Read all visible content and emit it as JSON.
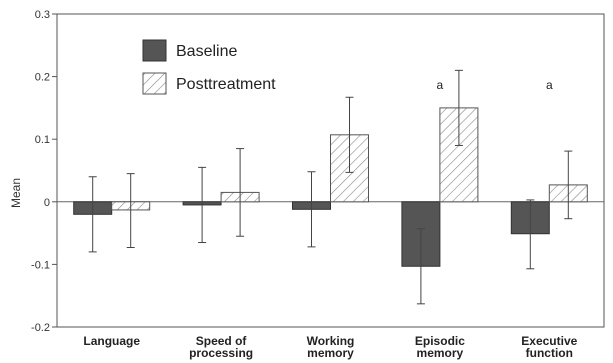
{
  "chart_data": {
    "type": "bar",
    "title": "",
    "xlabel": "",
    "ylabel": "Mean",
    "ylim": [
      -0.2,
      0.3
    ],
    "yticks": [
      -0.2,
      -0.1,
      0,
      0.1,
      0.2,
      0.3
    ],
    "ytick_labels": [
      "-0.2",
      "-0.1",
      "0",
      "0.1",
      "0.2",
      "0.3"
    ],
    "grid": false,
    "legend_position": "top-left",
    "categories": [
      [
        "Language"
      ],
      [
        "Speed of",
        "processing"
      ],
      [
        "Working",
        "memory"
      ],
      [
        "Episodic",
        "memory"
      ],
      [
        "Executive",
        "function"
      ]
    ],
    "series": [
      {
        "name": "Baseline",
        "fill": "#555555",
        "pattern": "solid",
        "values": [
          -0.02,
          -0.005,
          -0.012,
          -0.103,
          -0.051
        ],
        "error_low": [
          -0.08,
          -0.065,
          -0.072,
          -0.163,
          -0.107
        ],
        "error_high": [
          0.04,
          0.055,
          0.048,
          -0.043,
          0.003
        ]
      },
      {
        "name": "Posttreatment",
        "fill": "#ffffff",
        "pattern": "diagonal-hatch",
        "values": [
          -0.013,
          0.015,
          0.107,
          0.15,
          0.027
        ],
        "error_low": [
          -0.073,
          -0.055,
          0.047,
          0.09,
          -0.027
        ],
        "error_high": [
          0.045,
          0.085,
          0.167,
          0.21,
          0.081
        ]
      }
    ],
    "annotations": [
      {
        "text": "a",
        "category_index": 3
      },
      {
        "text": "a",
        "category_index": 4
      }
    ]
  }
}
